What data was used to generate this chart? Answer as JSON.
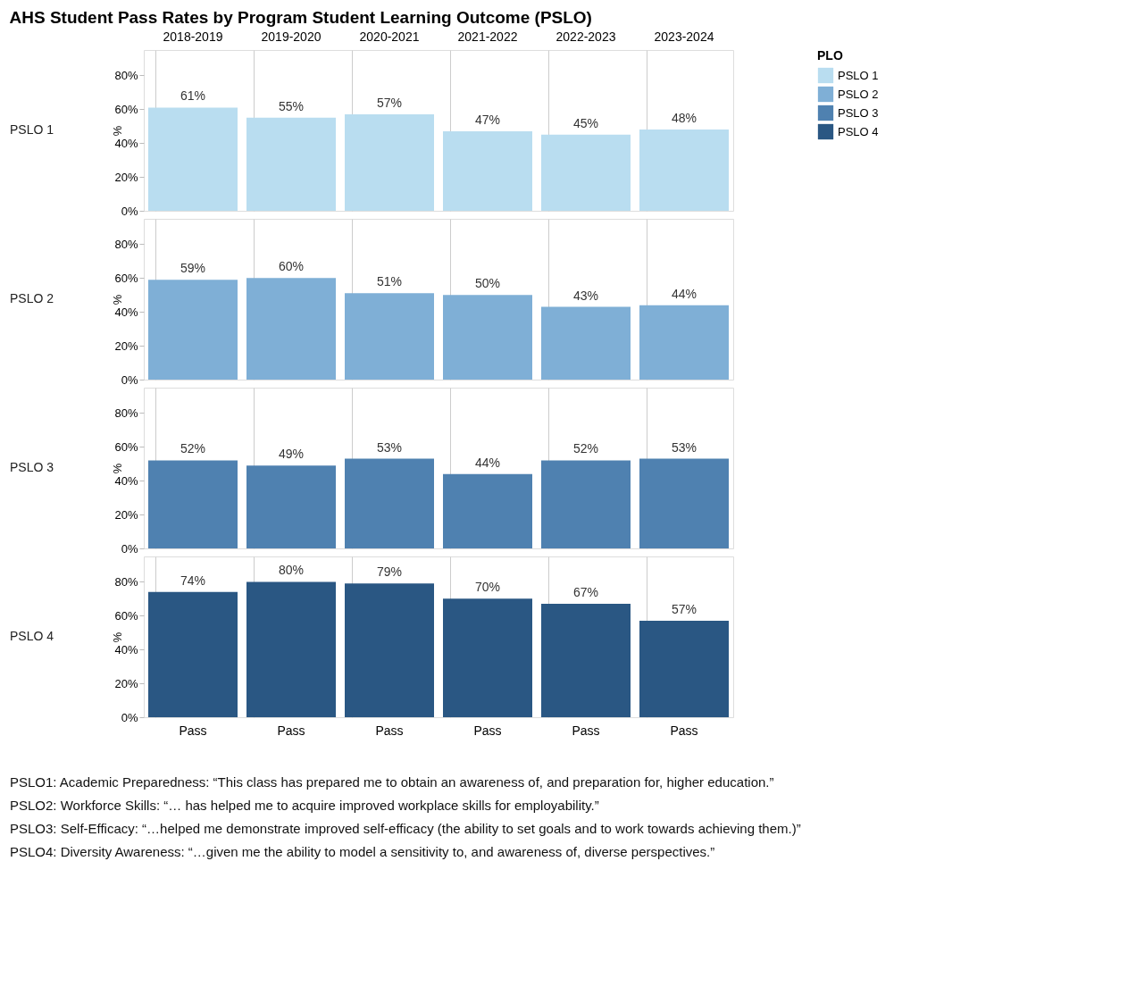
{
  "chart_data": [
    {
      "type": "bar",
      "title": "AHS Student Pass Rates by Program Student Learning Outcome (PSLO)",
      "categories": [
        "2018-2019",
        "2019-2020",
        "2020-2021",
        "2021-2022",
        "2022-2023",
        "2023-2024"
      ],
      "ylabel": "%",
      "ylim": [
        0,
        95
      ],
      "yticks": [
        {
          "value": 0,
          "label": "0%"
        },
        {
          "value": 20,
          "label": "20%"
        },
        {
          "value": 40,
          "label": "40%"
        },
        {
          "value": 60,
          "label": "60%"
        },
        {
          "value": 80,
          "label": "80%"
        }
      ],
      "legend": "right",
      "legend_title": "PLO",
      "series": [
        {
          "name": "PSLO 1",
          "color": "#b9ddf0",
          "values": [
            61,
            55,
            57,
            47,
            45,
            48
          ],
          "value_labels": [
            "61%",
            "55%",
            "57%",
            "47%",
            "45%",
            "48%"
          ]
        }
      ]
    },
    {
      "type": "bar",
      "categories": [
        null,
        null,
        null,
        null,
        null,
        null
      ],
      "ylabel": "%",
      "ylim": [
        0,
        95
      ],
      "yticks": [
        {
          "value": 0,
          "label": "0%"
        },
        {
          "value": 20,
          "label": "20%"
        },
        {
          "value": 40,
          "label": "40%"
        },
        {
          "value": 60,
          "label": "60%"
        },
        {
          "value": 80,
          "label": "80%"
        }
      ],
      "tick_labels": "y",
      "series": [
        {
          "name": "PSLO 2",
          "color": "#7fafd6",
          "values": [
            59,
            60,
            51,
            50,
            43,
            44
          ],
          "value_labels": [
            "59%",
            "60%",
            "51%",
            "50%",
            "43%",
            "44%"
          ]
        }
      ]
    },
    {
      "type": "bar",
      "categories": [
        null,
        null,
        null,
        null,
        null,
        null
      ],
      "ylabel": "%",
      "ylim": [
        0,
        95
      ],
      "yticks": [
        {
          "value": 0,
          "label": "0%"
        },
        {
          "value": 20,
          "label": "20%"
        },
        {
          "value": 40,
          "label": "40%"
        },
        {
          "value": 60,
          "label": "60%"
        },
        {
          "value": 80,
          "label": "80%"
        }
      ],
      "tick_labels": "y",
      "series": [
        {
          "name": "PSLO 3",
          "color": "#4f81b0",
          "values": [
            52,
            49,
            53,
            44,
            52,
            53
          ],
          "value_labels": [
            "52%",
            "49%",
            "53%",
            "44%",
            "52%",
            "53%"
          ]
        }
      ]
    },
    {
      "type": "bar",
      "categories": [
        "Pass",
        "Pass",
        "Pass",
        "Pass",
        "Pass",
        "Pass"
      ],
      "ylabel": "%",
      "ylim": [
        0,
        95
      ],
      "yticks": [
        {
          "value": 0,
          "label": "0%"
        },
        {
          "value": 20,
          "label": "20%"
        },
        {
          "value": 40,
          "label": "40%"
        },
        {
          "value": 60,
          "label": "60%"
        },
        {
          "value": 80,
          "label": "80%"
        }
      ],
      "series": [
        {
          "name": "PSLO 4",
          "color": "#2a5783",
          "values": [
            74,
            80,
            79,
            70,
            67,
            57
          ],
          "value_labels": [
            "74%",
            "80%",
            "79%",
            "70%",
            "67%",
            "57%"
          ]
        }
      ],
      "annotations": [
        "PSLO1: Academic Preparedness: “This class has prepared me to obtain an awareness of, and preparation for, higher education.”",
        "PSLO2: Workforce Skills: “… has helped me to acquire improved workplace skills for employability.”",
        "PSLO3: Self-Efficacy: “…helped me demonstrate improved self-efficacy (the ability to set goals and to work towards achieving them.)”",
        "PSLO4: Diversity Awareness: “…given me the ability to model a sensitivity to, and awareness of, diverse perspectives.”"
      ]
    }
  ]
}
